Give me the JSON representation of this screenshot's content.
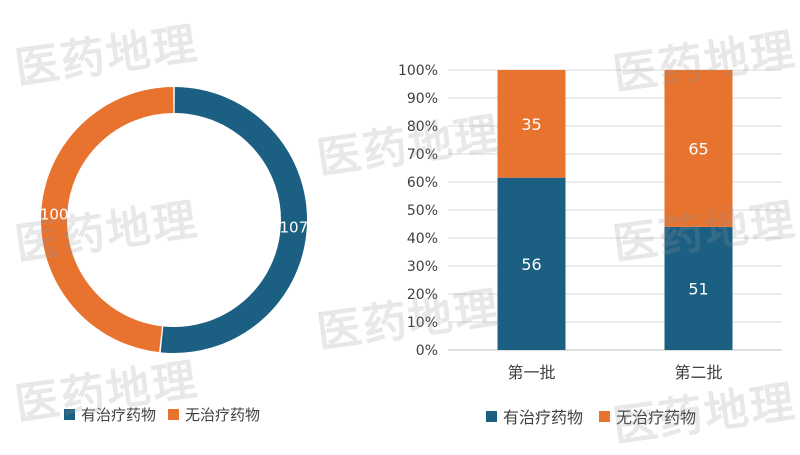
{
  "colors": {
    "blue": "#1b5f82",
    "orange": "#e8732f",
    "grid": "#d9d9d9",
    "axis": "#bfbfbf",
    "text": "#404040"
  },
  "watermark": "医药地理",
  "chart_data": [
    {
      "type": "pie",
      "subtype": "donut",
      "series": [
        {
          "name": "有治疗药物",
          "value": 107,
          "color": "#1b5f82"
        },
        {
          "name": "无治疗药物",
          "value": 100,
          "color": "#e8732f"
        }
      ],
      "legend": {
        "position": "bottom-left",
        "entries": [
          "有治疗药物",
          "无治疗药物"
        ]
      }
    },
    {
      "type": "bar",
      "subtype": "stacked-100",
      "categories": [
        "第一批",
        "第二批"
      ],
      "series": [
        {
          "name": "有治疗药物",
          "values": [
            56,
            51
          ],
          "color": "#1b5f82"
        },
        {
          "name": "无治疗药物",
          "values": [
            35,
            65
          ],
          "color": "#e8732f"
        }
      ],
      "yticks": [
        "0%",
        "10%",
        "20%",
        "30%",
        "40%",
        "50%",
        "60%",
        "70%",
        "80%",
        "90%",
        "100%"
      ],
      "ylim": [
        0,
        100
      ],
      "legend": {
        "position": "bottom",
        "entries": [
          "有治疗药物",
          "无治疗药物"
        ]
      }
    }
  ]
}
